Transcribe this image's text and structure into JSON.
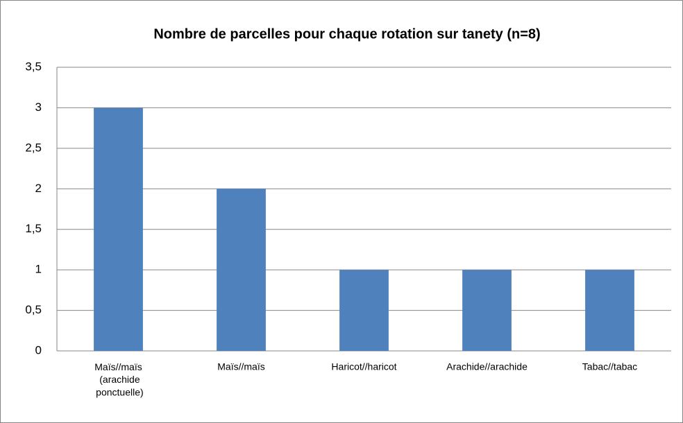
{
  "chart_data": {
    "type": "bar",
    "title": "Nombre de parcelles pour chaque rotation sur tanety (n=8)",
    "categories": [
      "Maïs//maïs (arachide ponctuelle)",
      "Maïs//maïs",
      "Haricot//haricot",
      "Arachide//arachide",
      "Tabac//tabac"
    ],
    "values": [
      3,
      2,
      1,
      1,
      1
    ],
    "color": "#4f81bd",
    "ylim": [
      0,
      3.5
    ],
    "yticks": [
      0,
      {
        "value": 0.5,
        "label": "0,5"
      },
      1,
      {
        "value": 1.5,
        "label": "1,5"
      },
      2,
      {
        "value": 2.5,
        "label": "2,5"
      },
      3,
      {
        "value": 3.5,
        "label": "3,5"
      }
    ],
    "grid": true
  }
}
